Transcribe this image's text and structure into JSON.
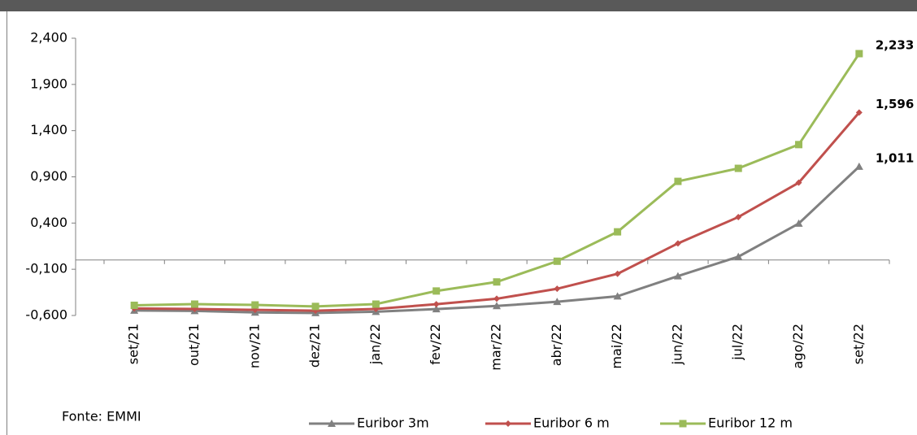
{
  "chart_data": {
    "type": "line",
    "source": "Fonte: EMMI",
    "categories": [
      "set/21",
      "out/21",
      "nov/21",
      "dez/21",
      "jan/22",
      "fev/22",
      "mar/22",
      "abr/22",
      "mai/22",
      "jun/22",
      "jul/22",
      "ago/22",
      "set/22"
    ],
    "series": [
      {
        "name": "Euribor 3m",
        "color": "#808080",
        "marker": "triangle",
        "values": [
          -0.546,
          -0.551,
          -0.567,
          -0.573,
          -0.559,
          -0.531,
          -0.497,
          -0.452,
          -0.392,
          -0.174,
          0.036,
          0.395,
          1.011
        ],
        "value_labels": [
          null,
          null,
          null,
          null,
          null,
          null,
          null,
          null,
          null,
          null,
          null,
          null,
          "1,011"
        ]
      },
      {
        "name": "Euribor 6 m",
        "color": "#c0504d",
        "marker": "diamond",
        "values": [
          -0.524,
          -0.53,
          -0.539,
          -0.548,
          -0.53,
          -0.478,
          -0.419,
          -0.311,
          -0.149,
          0.18,
          0.465,
          0.837,
          1.596
        ],
        "value_labels": [
          null,
          null,
          null,
          null,
          null,
          null,
          null,
          null,
          null,
          null,
          null,
          null,
          "1,596"
        ]
      },
      {
        "name": "Euribor 12 m",
        "color": "#9bbb59",
        "marker": "square",
        "values": [
          -0.49,
          -0.477,
          -0.486,
          -0.502,
          -0.477,
          -0.335,
          -0.237,
          -0.013,
          0.305,
          0.851,
          0.992,
          1.249,
          2.233
        ],
        "value_labels": [
          null,
          null,
          null,
          null,
          null,
          null,
          null,
          null,
          null,
          null,
          null,
          null,
          "2,233"
        ]
      }
    ],
    "ylim": [
      -0.6,
      2.4
    ],
    "yticks": [
      {
        "value": -0.6,
        "label": "-0,600"
      },
      {
        "value": -0.1,
        "label": "-0,100"
      },
      {
        "value": 0.4,
        "label": "0,400"
      },
      {
        "value": 0.9,
        "label": "0,900"
      },
      {
        "value": 1.4,
        "label": "1,400"
      },
      {
        "value": 1.9,
        "label": "1,900"
      },
      {
        "value": 2.4,
        "label": "2,400"
      }
    ],
    "grid": false
  }
}
